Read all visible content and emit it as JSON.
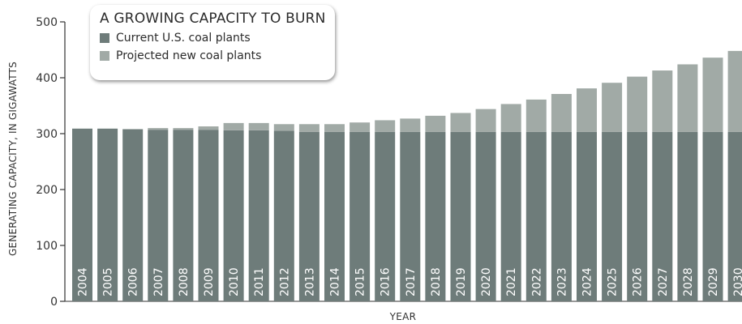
{
  "chart_data": {
    "type": "bar",
    "stacked": true,
    "title": "A GROWING CAPACITY TO BURN",
    "xlabel": "YEAR",
    "ylabel": "GENERATING CAPACITY, IN GIGAWATTS",
    "ylim": [
      0,
      500
    ],
    "yticks": [
      0,
      100,
      200,
      300,
      400,
      500
    ],
    "legend_position": "top-left",
    "grid": false,
    "categories": [
      "2004",
      "2005",
      "2006",
      "2007",
      "2008",
      "2009",
      "2010",
      "2011",
      "2012",
      "2013",
      "2014",
      "2015",
      "2016",
      "2017",
      "2018",
      "2019",
      "2020",
      "2021",
      "2022",
      "2023",
      "2024",
      "2025",
      "2026",
      "2027",
      "2028",
      "2029",
      "2030"
    ],
    "series": [
      {
        "name": "Current U.S. coal plants",
        "color": "#6e7c7a",
        "values": [
          309,
          309,
          308,
          307,
          307,
          307,
          306,
          306,
          305,
          303,
          303,
          303,
          303,
          303,
          303,
          303,
          303,
          303,
          303,
          303,
          303,
          303,
          303,
          303,
          303,
          303,
          303
        ]
      },
      {
        "name": "Projected new coal plants",
        "color": "#a1aaa6",
        "values": [
          0,
          0,
          0,
          3,
          3,
          6,
          13,
          13,
          12,
          14,
          14,
          17,
          21,
          24,
          29,
          34,
          41,
          50,
          58,
          68,
          78,
          88,
          99,
          110,
          121,
          133,
          145
        ]
      }
    ]
  }
}
